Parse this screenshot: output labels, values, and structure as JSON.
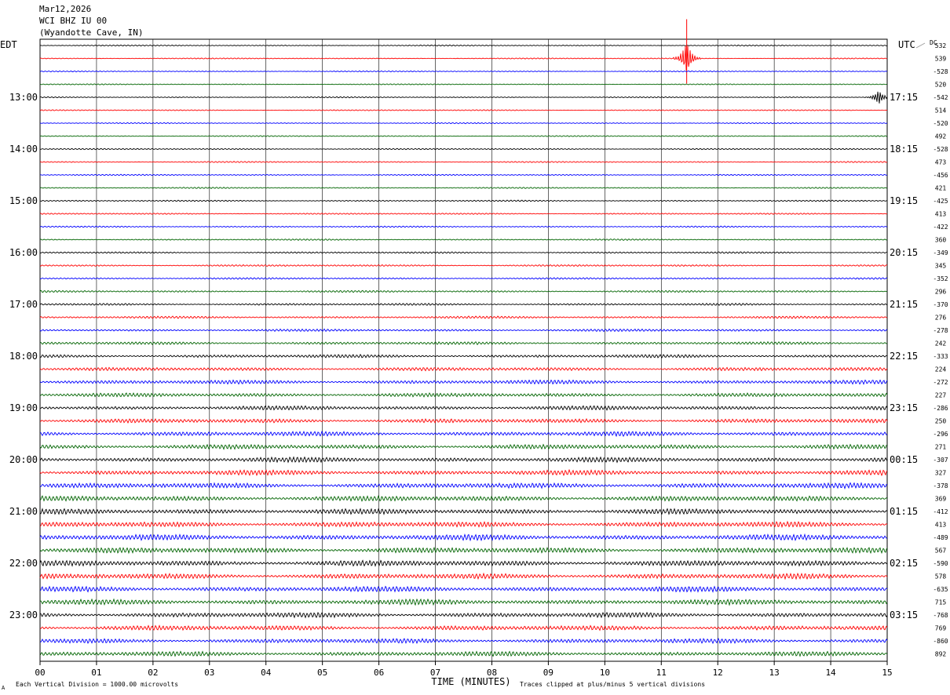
{
  "header": {
    "date": "Mar12,2026",
    "station": "WCI BHZ IU 00",
    "location": "(Wyandotte Cave, IN)"
  },
  "labels": {
    "left_zone": "EDT",
    "right_zone": "UTC",
    "dc_label": "DC",
    "xlabel": "TIME (MINUTES)",
    "footer_left": "Each Vertical Division = 1000.00 microvolts",
    "footer_right": "Traces clipped at plus/minus 5 vertical divisions",
    "corner_mark": "A"
  },
  "colors": {
    "trace_cycle": [
      "#000000",
      "#ff0000",
      "#0000ff",
      "#006400"
    ],
    "grid": "#000000",
    "background": "#ffffff"
  },
  "chart_data": {
    "type": "line",
    "subtype": "helicorder",
    "x": {
      "label": "TIME (MINUTES)",
      "ticks": [
        "00",
        "01",
        "02",
        "03",
        "04",
        "05",
        "06",
        "07",
        "08",
        "09",
        "10",
        "11",
        "12",
        "13",
        "14",
        "15"
      ],
      "range": [
        0,
        15
      ],
      "unit": "minutes"
    },
    "rows_per_hour": 4,
    "left_hour_labels": [
      {
        "row": 4,
        "text": "13:00"
      },
      {
        "row": 8,
        "text": "14:00"
      },
      {
        "row": 12,
        "text": "15:00"
      },
      {
        "row": 16,
        "text": "16:00"
      },
      {
        "row": 20,
        "text": "17:00"
      },
      {
        "row": 24,
        "text": "18:00"
      },
      {
        "row": 28,
        "text": "19:00"
      },
      {
        "row": 32,
        "text": "20:00"
      },
      {
        "row": 36,
        "text": "21:00"
      },
      {
        "row": 40,
        "text": "22:00"
      },
      {
        "row": 44,
        "text": "23:00"
      }
    ],
    "right_hour_labels": [
      {
        "row": 4,
        "text": "17:15"
      },
      {
        "row": 8,
        "text": "18:15"
      },
      {
        "row": 12,
        "text": "19:15"
      },
      {
        "row": 16,
        "text": "20:15"
      },
      {
        "row": 20,
        "text": "21:15"
      },
      {
        "row": 24,
        "text": "22:15"
      },
      {
        "row": 28,
        "text": "23:15"
      },
      {
        "row": 32,
        "text": "00:15"
      },
      {
        "row": 36,
        "text": "01:15"
      },
      {
        "row": 40,
        "text": "02:15"
      },
      {
        "row": 44,
        "text": "03:15"
      }
    ],
    "dc_offsets": [
      "532",
      "539",
      "-528",
      "520",
      "-542",
      "514",
      "-520",
      "492",
      "-528",
      "473",
      "-456",
      "421",
      "-425",
      "413",
      "-422",
      "360",
      "-349",
      "345",
      "-352",
      "296",
      "-370",
      "276",
      "-278",
      "242",
      "-333",
      "224",
      "-272",
      "227",
      "-286",
      "250",
      "-296",
      "271",
      "-307",
      "327",
      "-378",
      "369",
      "-412",
      "413",
      "-489",
      "567",
      "-590",
      "578",
      "-635",
      "715",
      "-768",
      "769",
      "-860",
      "892"
    ],
    "amplitude_envelope": [
      0.15,
      0.15,
      0.15,
      0.15,
      0.16,
      0.16,
      0.16,
      0.16,
      0.18,
      0.18,
      0.18,
      0.18,
      0.2,
      0.2,
      0.2,
      0.2,
      0.25,
      0.25,
      0.25,
      0.28,
      0.3,
      0.32,
      0.35,
      0.4,
      0.45,
      0.5,
      0.55,
      0.55,
      0.6,
      0.6,
      0.65,
      0.65,
      0.7,
      0.7,
      0.75,
      0.75,
      0.75,
      0.75,
      0.8,
      0.8,
      0.8,
      0.75,
      0.75,
      0.75,
      0.7,
      0.7,
      0.65,
      0.65
    ],
    "events": [
      {
        "row": 1,
        "minute": 11.45,
        "amplitude": 5.0,
        "note": "large spike"
      },
      {
        "row": 4,
        "minute": 14.85,
        "amplitude": 2.0,
        "note": "burst"
      }
    ],
    "grid": true
  }
}
